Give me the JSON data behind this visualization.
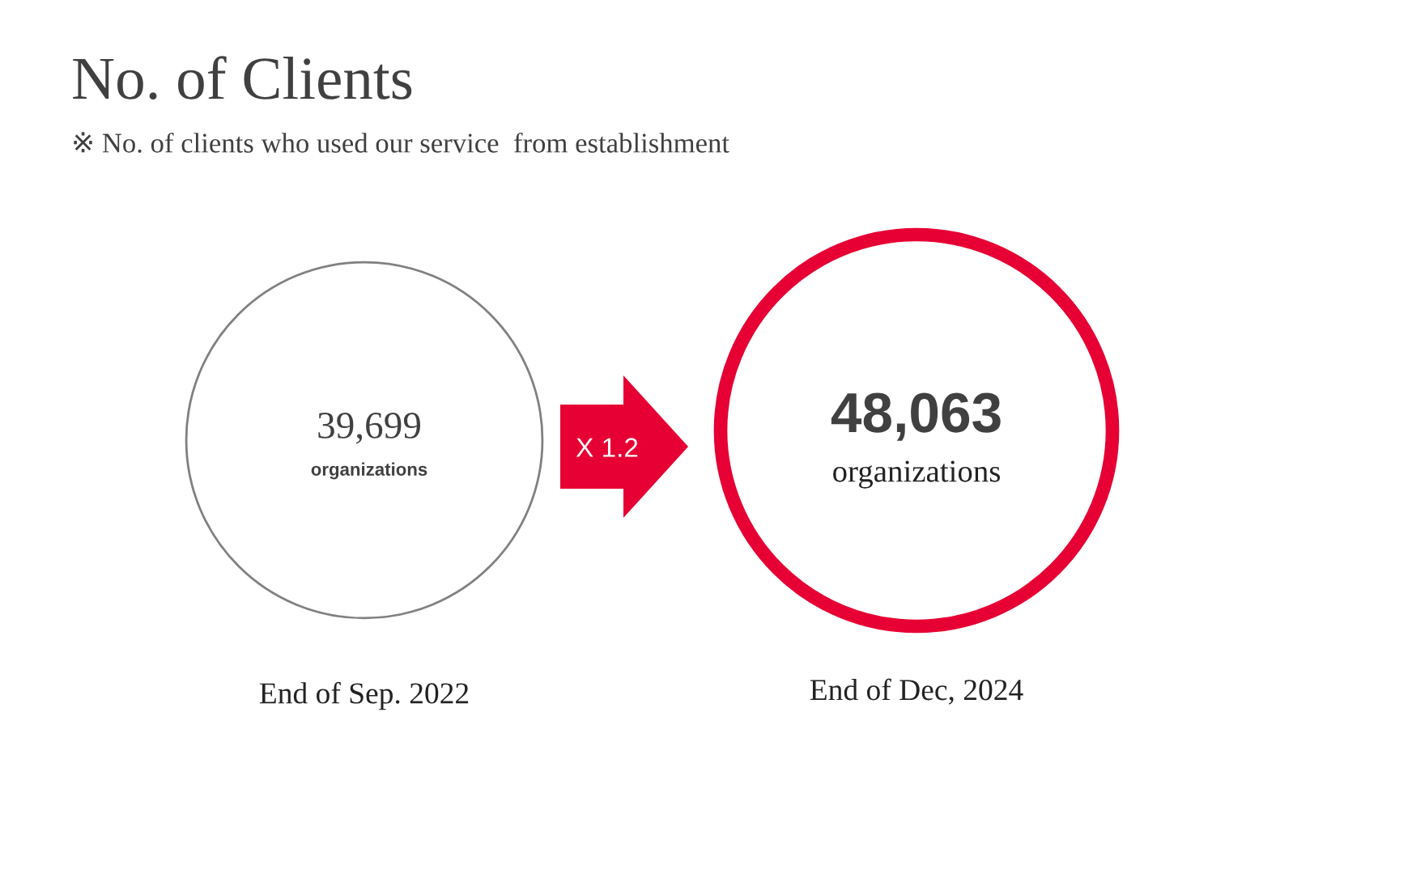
{
  "chart_data": {
    "type": "other",
    "title": "No. of Clients",
    "subtitle": "※ No. of clients who used our service  from establishment",
    "categories": [
      "End of Sep. 2022",
      "End of Dec, 2024"
    ],
    "values": [
      39699,
      48063
    ],
    "value_labels": [
      "39,699",
      "48,063"
    ],
    "colors": [
      "#808080",
      "#e60033"
    ],
    "annotations": [
      "organizations",
      "organizations",
      "X 1.2"
    ]
  }
}
